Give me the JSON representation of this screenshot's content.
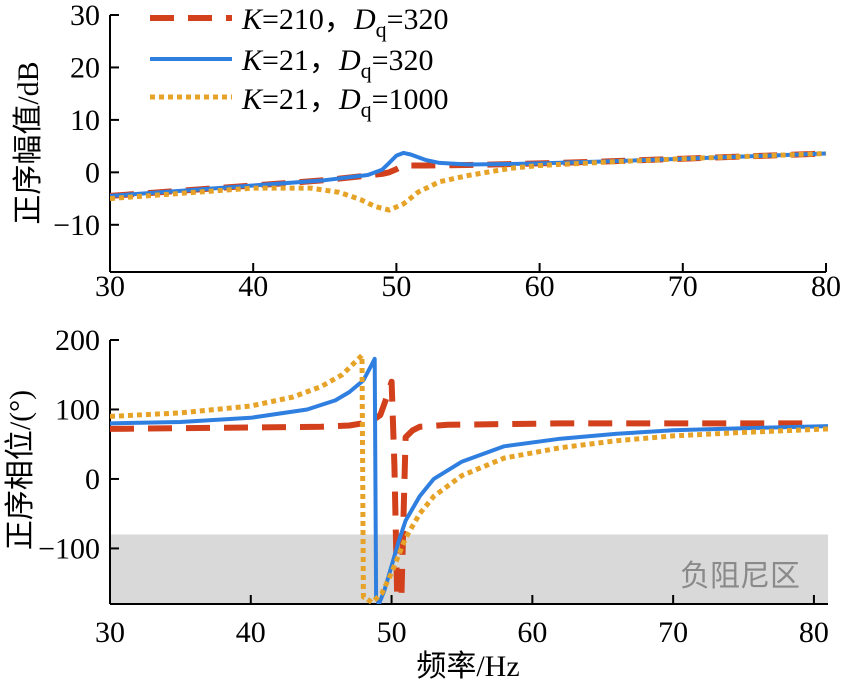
{
  "chart_data": [
    {
      "type": "line",
      "ylabel": "正序幅值/dB",
      "xlim": [
        30,
        80
      ],
      "ylim": [
        -19,
        30
      ],
      "xticks": [
        "30",
        "40",
        "50",
        "60",
        "70",
        "80"
      ],
      "yticks": [
        "30",
        "20",
        "10",
        "0",
        "−10"
      ],
      "legend": {
        "position": "top-left",
        "entries": [
          {
            "k": "K",
            "k_val": "=210，",
            "d": "D",
            "d_sub": "q",
            "d_val": "=320"
          },
          {
            "k": "K",
            "k_val": "=21，",
            "d": "D",
            "d_sub": "q",
            "d_val": "=320"
          },
          {
            "k": "K",
            "k_val": "=21，",
            "d": "D",
            "d_sub": "q",
            "d_val": "=1000"
          }
        ]
      },
      "series": [
        {
          "name": "K=210, Dq=320",
          "color": "#d2401c",
          "style": "dashed",
          "x": [
            30,
            35,
            40,
            45,
            48,
            49,
            49.5,
            50,
            50.5,
            51,
            52,
            55,
            60,
            65,
            70,
            75,
            80
          ],
          "y": [
            -4.5,
            -3.5,
            -2.5,
            -1.5,
            -0.6,
            -0.3,
            0,
            0.6,
            1.3,
            1.3,
            1.3,
            1.4,
            1.7,
            2.1,
            2.6,
            3.1,
            3.6
          ]
        },
        {
          "name": "K=21, Dq=320",
          "color": "#2f7fe0",
          "style": "solid",
          "x": [
            30,
            35,
            40,
            45,
            48,
            49,
            49.5,
            50,
            50.5,
            51,
            52,
            53,
            55,
            58,
            60,
            65,
            70,
            75,
            80
          ],
          "y": [
            -4.5,
            -3.5,
            -2.5,
            -1.5,
            -0.5,
            0.5,
            1.8,
            3.2,
            3.7,
            3.4,
            2.4,
            1.8,
            1.5,
            1.6,
            1.7,
            2.1,
            2.6,
            3.1,
            3.6
          ]
        },
        {
          "name": "K=21, Dq=1000",
          "color": "#e6a327",
          "style": "dotted",
          "x": [
            30,
            35,
            40,
            44,
            46,
            47.5,
            48.5,
            49.5,
            50.5,
            51.5,
            53,
            55,
            58,
            60,
            65,
            70,
            75,
            80
          ],
          "y": [
            -5,
            -4,
            -3,
            -3,
            -3.8,
            -5.2,
            -6.5,
            -7.2,
            -6,
            -3.8,
            -1.8,
            -0.6,
            0.8,
            1.3,
            2,
            2.6,
            3.1,
            3.6
          ]
        }
      ]
    },
    {
      "type": "line",
      "ylabel": "正序相位/(°)",
      "xlabel": "频率/Hz",
      "xlim": [
        30,
        81
      ],
      "ylim": [
        -180,
        200
      ],
      "xticks": [
        "30",
        "40",
        "50",
        "60",
        "70",
        "80"
      ],
      "yticks": [
        "200",
        "100",
        "0",
        "−100"
      ],
      "shaded_region": {
        "label": "负阻尼区",
        "y_from": -180,
        "y_to": -80,
        "color": "#d9d9d9"
      },
      "series": [
        {
          "name": "K=210, Dq=320",
          "color": "#d2401c",
          "style": "dashed",
          "x": [
            30,
            35,
            40,
            45,
            47,
            48.5,
            49.2,
            49.7,
            50,
            50.2,
            50.4,
            50.7,
            51,
            51.5,
            52,
            54,
            58,
            62,
            66,
            70,
            75,
            80
          ],
          "y": [
            72,
            73,
            74,
            75,
            77,
            82,
            92,
            120,
            140,
            20,
            -170,
            -170,
            60,
            70,
            75,
            78,
            79,
            80,
            80,
            80,
            80,
            80
          ]
        },
        {
          "name": "K=21, Dq=320",
          "color": "#2f7fe0",
          "style": "solid",
          "x": [
            30,
            35,
            40,
            44,
            46,
            47,
            48,
            48.6,
            48.8,
            48.9,
            49.1,
            49.5,
            50,
            50.5,
            51,
            52,
            53,
            55,
            58,
            62,
            66,
            70,
            75,
            81
          ],
          "y": [
            80,
            82,
            88,
            100,
            113,
            125,
            142,
            165,
            173,
            -170,
            -180,
            -160,
            -125,
            -90,
            -60,
            -25,
            0,
            25,
            47,
            58,
            65,
            70,
            73,
            76
          ]
        },
        {
          "name": "K=21, Dq=1000",
          "color": "#e6a327",
          "style": "dotted",
          "x": [
            30,
            35,
            40,
            43,
            45,
            46.5,
            47.5,
            47.9,
            48.0,
            48.1,
            48.6,
            49.3,
            50,
            51,
            52,
            53,
            55,
            58,
            62,
            66,
            70,
            75,
            81
          ],
          "y": [
            90,
            95,
            105,
            118,
            133,
            150,
            170,
            178,
            -170,
            -170,
            -178,
            -165,
            -135,
            -85,
            -50,
            -25,
            5,
            30,
            45,
            55,
            62,
            67,
            72
          ]
        }
      ]
    }
  ]
}
